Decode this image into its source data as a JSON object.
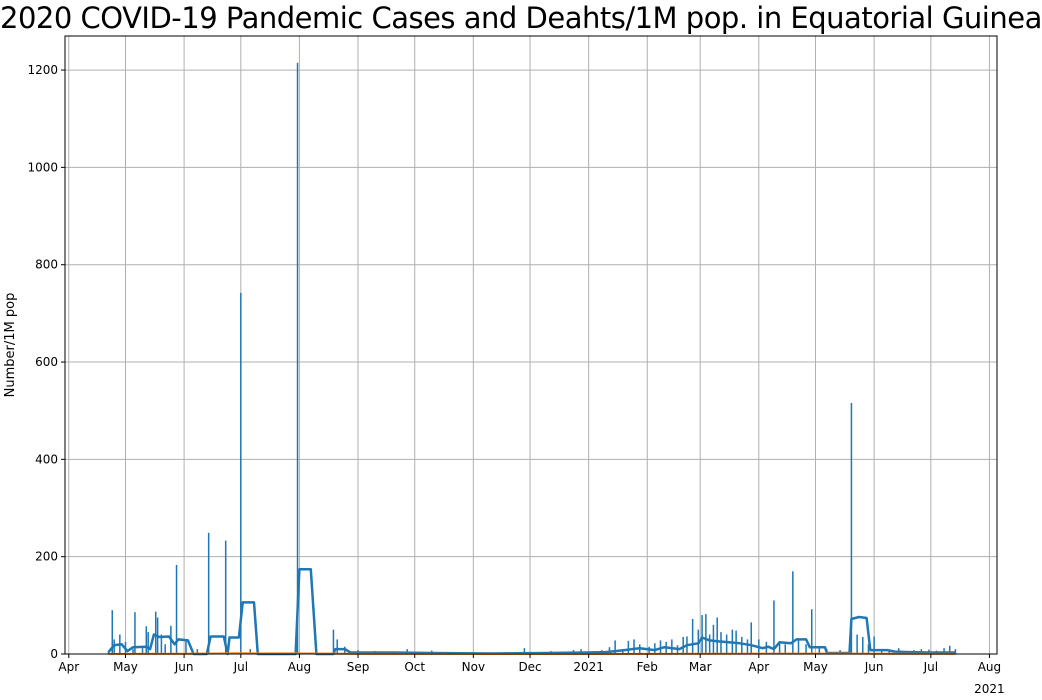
{
  "chart_data": {
    "type": "bar+line",
    "title": "2020 COVID-19 Pandemic Cases and Deahts/1M pop. in Equatorial Guinea",
    "xlabel": "",
    "ylabel": "Number/1M pop",
    "ylim": [
      0,
      1270
    ],
    "xlim": [
      "2020-03-30",
      "2021-08-05"
    ],
    "grid": true,
    "y_ticks": [
      0,
      200,
      400,
      600,
      800,
      1000,
      1200
    ],
    "x_ticks": [
      {
        "date": "2020-04-01",
        "label": "Apr"
      },
      {
        "date": "2020-05-01",
        "label": "May"
      },
      {
        "date": "2020-06-01",
        "label": "Jun"
      },
      {
        "date": "2020-07-01",
        "label": "Jul"
      },
      {
        "date": "2020-08-01",
        "label": "Aug"
      },
      {
        "date": "2020-09-01",
        "label": "Sep"
      },
      {
        "date": "2020-10-01",
        "label": "Oct"
      },
      {
        "date": "2020-11-01",
        "label": "Nov"
      },
      {
        "date": "2020-12-01",
        "label": "Dec"
      },
      {
        "date": "2021-01-01",
        "label": "2021"
      },
      {
        "date": "2021-02-01",
        "label": "Feb"
      },
      {
        "date": "2021-03-01",
        "label": "Mar"
      },
      {
        "date": "2021-04-01",
        "label": "Apr"
      },
      {
        "date": "2021-05-01",
        "label": "May"
      },
      {
        "date": "2021-06-01",
        "label": "Jun"
      },
      {
        "date": "2021-07-01",
        "label": "Jul"
      },
      {
        "date": "2021-08-01",
        "label": "Aug"
      }
    ],
    "x_tick_extra_label": {
      "date": "2021-08-01",
      "label": "2021"
    },
    "colors": {
      "daily_cases": "#1f77b4",
      "rolling_avg_cases": "#1f77b4",
      "rolling_avg_deaths": "#ff7f0e",
      "grid": "#b0b0b0"
    },
    "series": [
      {
        "type": "bar",
        "values": [
          [
            "2020-04-22",
            5
          ],
          [
            "2020-04-24",
            90
          ],
          [
            "2020-04-25",
            30
          ],
          [
            "2020-04-28",
            40
          ],
          [
            "2020-05-01",
            25
          ],
          [
            "2020-05-05",
            10
          ],
          [
            "2020-05-06",
            86
          ],
          [
            "2020-05-10",
            12
          ],
          [
            "2020-05-12",
            57
          ],
          [
            "2020-05-13",
            45
          ],
          [
            "2020-05-17",
            87
          ],
          [
            "2020-05-18",
            75
          ],
          [
            "2020-05-20",
            40
          ],
          [
            "2020-05-22",
            20
          ],
          [
            "2020-05-25",
            58
          ],
          [
            "2020-05-28",
            183
          ],
          [
            "2020-06-02",
            30
          ],
          [
            "2020-06-08",
            10
          ],
          [
            "2020-06-14",
            249
          ],
          [
            "2020-06-23",
            233
          ],
          [
            "2020-07-01",
            742
          ],
          [
            "2020-07-06",
            10
          ],
          [
            "2020-07-31",
            1215
          ],
          [
            "2020-08-19",
            50
          ],
          [
            "2020-08-21",
            30
          ],
          [
            "2020-08-25",
            15
          ],
          [
            "2020-09-01",
            8
          ],
          [
            "2020-09-05",
            5
          ],
          [
            "2020-09-10",
            6
          ],
          [
            "2020-09-15",
            4
          ],
          [
            "2020-09-20",
            5
          ],
          [
            "2020-09-27",
            10
          ],
          [
            "2020-10-03",
            5
          ],
          [
            "2020-10-10",
            7
          ],
          [
            "2020-10-16",
            3
          ],
          [
            "2020-10-22",
            4
          ],
          [
            "2020-11-04",
            3
          ],
          [
            "2020-11-10",
            2
          ],
          [
            "2020-11-18",
            4
          ],
          [
            "2020-11-23",
            3
          ],
          [
            "2020-11-28",
            12
          ],
          [
            "2020-12-05",
            4
          ],
          [
            "2020-12-12",
            6
          ],
          [
            "2020-12-18",
            5
          ],
          [
            "2020-12-24",
            8
          ],
          [
            "2020-12-28",
            10
          ],
          [
            "2021-01-04",
            6
          ],
          [
            "2021-01-08",
            8
          ],
          [
            "2021-01-12",
            14
          ],
          [
            "2021-01-15",
            28
          ],
          [
            "2021-01-19",
            10
          ],
          [
            "2021-01-22",
            27
          ],
          [
            "2021-01-25",
            30
          ],
          [
            "2021-01-28",
            20
          ],
          [
            "2021-02-02",
            15
          ],
          [
            "2021-02-05",
            22
          ],
          [
            "2021-02-08",
            28
          ],
          [
            "2021-02-11",
            25
          ],
          [
            "2021-02-14",
            30
          ],
          [
            "2021-02-17",
            18
          ],
          [
            "2021-02-20",
            35
          ],
          [
            "2021-02-22",
            36
          ],
          [
            "2021-02-25",
            72
          ],
          [
            "2021-02-28",
            50
          ],
          [
            "2021-03-02",
            80
          ],
          [
            "2021-03-04",
            82
          ],
          [
            "2021-03-06",
            40
          ],
          [
            "2021-03-08",
            60
          ],
          [
            "2021-03-10",
            75
          ],
          [
            "2021-03-12",
            45
          ],
          [
            "2021-03-15",
            40
          ],
          [
            "2021-03-18",
            50
          ],
          [
            "2021-03-20",
            48
          ],
          [
            "2021-03-23",
            35
          ],
          [
            "2021-03-26",
            30
          ],
          [
            "2021-03-28",
            65
          ],
          [
            "2021-04-01",
            30
          ],
          [
            "2021-04-05",
            25
          ],
          [
            "2021-04-09",
            110
          ],
          [
            "2021-04-12",
            25
          ],
          [
            "2021-04-15",
            20
          ],
          [
            "2021-04-19",
            170
          ],
          [
            "2021-04-22",
            30
          ],
          [
            "2021-04-26",
            20
          ],
          [
            "2021-04-29",
            92
          ],
          [
            "2021-05-03",
            15
          ],
          [
            "2021-05-07",
            10
          ],
          [
            "2021-05-14",
            8
          ],
          [
            "2021-05-20",
            516
          ],
          [
            "2021-05-23",
            40
          ],
          [
            "2021-05-26",
            35
          ],
          [
            "2021-05-29",
            20
          ],
          [
            "2021-06-01",
            36
          ],
          [
            "2021-06-05",
            10
          ],
          [
            "2021-06-09",
            8
          ],
          [
            "2021-06-14",
            12
          ],
          [
            "2021-06-18",
            6
          ],
          [
            "2021-06-22",
            8
          ],
          [
            "2021-06-26",
            10
          ],
          [
            "2021-06-30",
            9
          ],
          [
            "2021-07-04",
            7
          ],
          [
            "2021-07-08",
            12
          ],
          [
            "2021-07-11",
            17
          ],
          [
            "2021-07-14",
            10
          ]
        ]
      },
      {
        "type": "line",
        "values": [
          [
            "2020-04-22",
            4
          ],
          [
            "2020-04-25",
            18
          ],
          [
            "2020-04-29",
            20
          ],
          [
            "2020-05-02",
            6
          ],
          [
            "2020-05-05",
            14
          ],
          [
            "2020-05-12",
            15
          ],
          [
            "2020-05-14",
            10
          ],
          [
            "2020-05-16",
            40
          ],
          [
            "2020-05-19",
            35
          ],
          [
            "2020-05-24",
            36
          ],
          [
            "2020-05-27",
            20
          ],
          [
            "2020-05-29",
            30
          ],
          [
            "2020-06-03",
            28
          ],
          [
            "2020-06-06",
            0
          ],
          [
            "2020-06-13",
            0
          ],
          [
            "2020-06-15",
            36
          ],
          [
            "2020-06-22",
            36
          ],
          [
            "2020-06-24",
            0
          ],
          [
            "2020-06-25",
            34
          ],
          [
            "2020-06-30",
            34
          ],
          [
            "2020-07-02",
            106
          ],
          [
            "2020-07-08",
            106
          ],
          [
            "2020-07-10",
            0
          ],
          [
            "2020-07-30",
            0
          ],
          [
            "2020-08-01",
            174
          ],
          [
            "2020-08-07",
            174
          ],
          [
            "2020-08-10",
            0
          ],
          [
            "2020-08-19",
            0
          ],
          [
            "2020-08-20",
            10
          ],
          [
            "2020-08-25",
            10
          ],
          [
            "2020-08-28",
            3
          ],
          [
            "2020-09-20",
            3
          ],
          [
            "2020-10-10",
            2
          ],
          [
            "2020-11-10",
            1
          ],
          [
            "2020-12-10",
            2
          ],
          [
            "2020-12-31",
            3
          ],
          [
            "2021-01-10",
            4
          ],
          [
            "2021-01-20",
            8
          ],
          [
            "2021-01-28",
            12
          ],
          [
            "2021-02-05",
            8
          ],
          [
            "2021-02-10",
            14
          ],
          [
            "2021-02-18",
            10
          ],
          [
            "2021-02-22",
            18
          ],
          [
            "2021-02-28",
            22
          ],
          [
            "2021-03-02",
            34
          ],
          [
            "2021-03-06",
            28
          ],
          [
            "2021-03-10",
            26
          ],
          [
            "2021-03-16",
            24
          ],
          [
            "2021-03-22",
            22
          ],
          [
            "2021-03-28",
            18
          ],
          [
            "2021-04-03",
            12
          ],
          [
            "2021-04-06",
            15
          ],
          [
            "2021-04-09",
            10
          ],
          [
            "2021-04-12",
            24
          ],
          [
            "2021-04-18",
            22
          ],
          [
            "2021-04-21",
            30
          ],
          [
            "2021-04-26",
            30
          ],
          [
            "2021-04-28",
            14
          ],
          [
            "2021-05-06",
            14
          ],
          [
            "2021-05-07",
            2
          ],
          [
            "2021-05-19",
            2
          ],
          [
            "2021-05-20",
            72
          ],
          [
            "2021-05-24",
            76
          ],
          [
            "2021-05-28",
            74
          ],
          [
            "2021-05-30",
            8
          ],
          [
            "2021-06-08",
            8
          ],
          [
            "2021-06-12",
            5
          ],
          [
            "2021-06-20",
            4
          ],
          [
            "2021-06-30",
            3
          ],
          [
            "2021-07-14",
            3
          ]
        ]
      },
      {
        "type": "line",
        "values": [
          [
            "2020-04-22",
            0.3
          ],
          [
            "2020-06-01",
            0.5
          ],
          [
            "2020-07-01",
            1.5
          ],
          [
            "2020-07-31",
            1.2
          ],
          [
            "2020-09-01",
            0.2
          ],
          [
            "2021-01-01",
            0.1
          ],
          [
            "2021-03-01",
            0.6
          ],
          [
            "2021-05-20",
            0.8
          ],
          [
            "2021-07-14",
            0.3
          ]
        ]
      }
    ]
  }
}
